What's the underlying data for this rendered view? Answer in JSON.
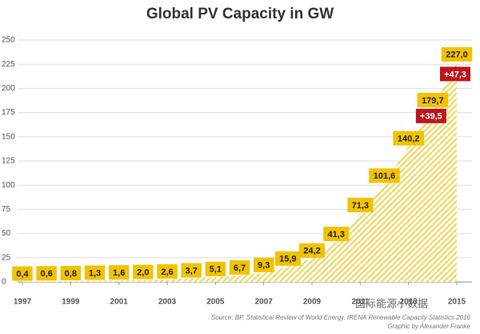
{
  "chart_data": {
    "type": "area",
    "title": "Global PV Capacity in GW",
    "x": [
      1997,
      1998,
      1999,
      2000,
      2001,
      2002,
      2003,
      2004,
      2005,
      2006,
      2007,
      2008,
      2009,
      2010,
      2011,
      2012,
      2013,
      2014,
      2015
    ],
    "values": [
      0.4,
      0.6,
      0.8,
      1.3,
      1.6,
      2.0,
      2.6,
      3.7,
      5.1,
      6.7,
      9.3,
      15.9,
      24.2,
      41.3,
      71.3,
      101.6,
      140.2,
      179.7,
      227.0
    ],
    "value_labels": [
      "0,4",
      "0,6",
      "0,8",
      "1,3",
      "1,6",
      "2,0",
      "2,6",
      "3,7",
      "5,1",
      "6,7",
      "9,3",
      "15,9",
      "24,2",
      "41,3",
      "71,3",
      "101,6",
      "140,2",
      "179,7",
      "227,0"
    ],
    "color": "#f2c200",
    "annotations": [
      "+39,5",
      "+47,3"
    ],
    "annotation_color": "#c0141c",
    "xlim": [
      1997,
      2015
    ],
    "xticks": [
      1997,
      1999,
      2001,
      2003,
      2005,
      2007,
      2009,
      2011,
      2013,
      2015
    ],
    "ylim": [
      0,
      250
    ],
    "yticks": [
      0,
      25,
      50,
      75,
      100,
      125,
      150,
      175,
      200,
      225,
      250
    ],
    "grid": true,
    "source": "Source: BP, Statistical Review of World Energy, IRENA Renewable Capacity Statistics 2016",
    "credit": "Graphic by Alexander Franke",
    "watermark": "国际能源小数据"
  }
}
